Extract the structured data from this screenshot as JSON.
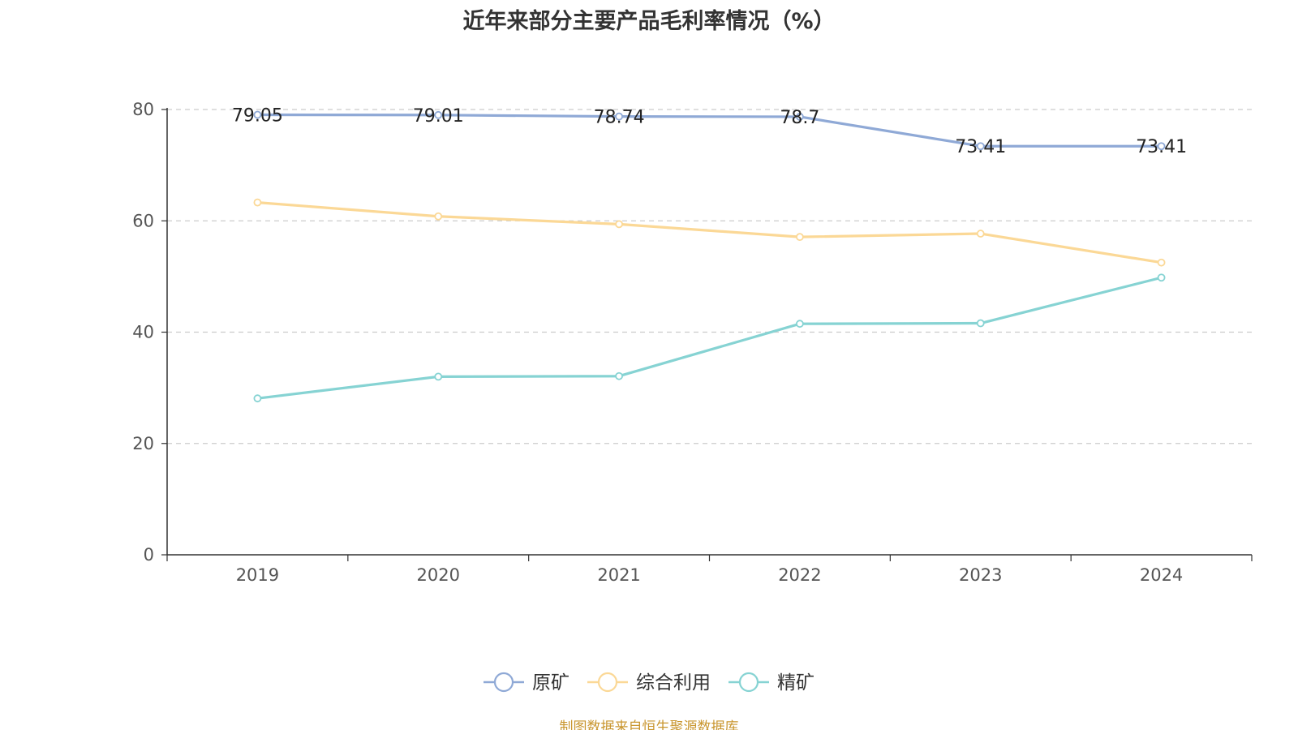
{
  "chart_data": {
    "type": "line",
    "title": "近年来部分主要产品毛利率情况（%）",
    "categories": [
      "2019",
      "2020",
      "2021",
      "2022",
      "2023",
      "2024"
    ],
    "ylim": [
      0,
      80
    ],
    "yticks": [
      0,
      20,
      40,
      60,
      80
    ],
    "grid": true,
    "legend_position": "bottom",
    "series": [
      {
        "name": "原矿",
        "color": "#8fa9d6",
        "values": [
          79.05,
          79.01,
          78.74,
          78.7,
          73.41,
          73.41
        ],
        "labels": [
          "79.05",
          "79.01",
          "78.74",
          "78.7",
          "73.41",
          "73.41"
        ],
        "show_labels": true
      },
      {
        "name": "综合利用",
        "color": "#fbd896",
        "values": [
          63.3,
          60.8,
          59.4,
          57.1,
          57.7,
          52.5
        ],
        "show_labels": false
      },
      {
        "name": "精矿",
        "color": "#86d3d3",
        "values": [
          28.1,
          32.0,
          32.1,
          41.5,
          41.6,
          49.8
        ],
        "show_labels": false
      }
    ]
  },
  "source_note": "制图数据来自恒生聚源数据库"
}
